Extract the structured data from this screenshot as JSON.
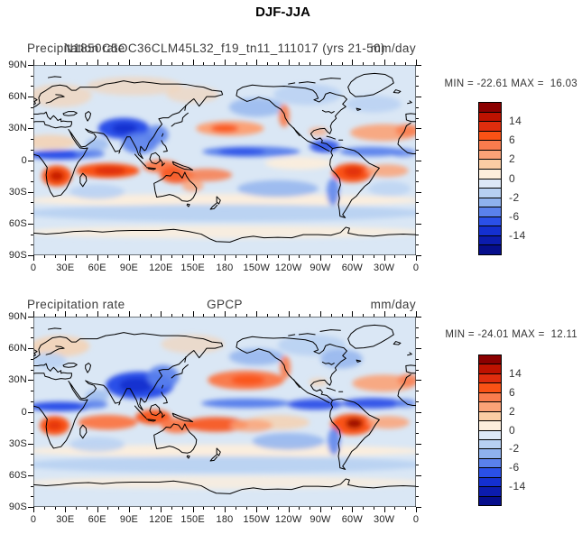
{
  "figure_title": "DJF-JJA",
  "palette": [
    "#8B0000",
    "#BE1200",
    "#DF2D0D",
    "#FA5215",
    "#F97C4D",
    "#FBA277",
    "#FBCDA4",
    "#FDEEDC",
    "#DDE8F7",
    "#B7D0F2",
    "#8FB2EE",
    "#5A81EC",
    "#2A50E8",
    "#1430D0",
    "#0C1CAE",
    "#060E8C"
  ],
  "colorbar": {
    "n_boxes": 16,
    "levels": [
      20,
      14,
      10,
      6,
      4,
      2,
      1,
      0,
      -1,
      -2,
      -4,
      -6,
      -10,
      -14,
      -20
    ],
    "labels": [
      {
        "label": "14",
        "boundary": 2
      },
      {
        "label": "6",
        "boundary": 4
      },
      {
        "label": "2",
        "boundary": 6
      },
      {
        "label": "0",
        "boundary": 8
      },
      {
        "label": "-2",
        "boundary": 10
      },
      {
        "label": "-6",
        "boundary": 12
      },
      {
        "label": "-14",
        "boundary": 14
      }
    ]
  },
  "axes": {
    "x_tick_labels": [
      "0",
      "30E",
      "60E",
      "90E",
      "120E",
      "150E",
      "180",
      "150W",
      "120W",
      "90W",
      "60W",
      "30W",
      "0"
    ],
    "y_tick_labels": [
      "90N",
      "60N",
      "30N",
      "0",
      "30S",
      "60S",
      "90S"
    ],
    "x_major_deg": 30,
    "x_minor_deg": 10,
    "y_major_deg": 30,
    "y_minor_deg": 10,
    "lon_range": [
      0,
      360
    ],
    "lat_range": [
      90,
      -90
    ]
  },
  "chart_data": [
    {
      "type": "heatmap",
      "panel": "model",
      "title_left": "Precipitation rate",
      "title_center": "N1850C5OC36CLM45L32_f19_tn11_111017 (yrs 21-50)",
      "title_right": "mm/day",
      "units": "mm/day",
      "min": -22.61,
      "max": 16.03,
      "minmax_text": "MIN = -22.61 MAX =  16.03",
      "features": [
        [
          180,
          -38,
          190,
          6,
          7,
          0.95
        ],
        [
          180,
          -50,
          190,
          8,
          9,
          0.9
        ],
        [
          180,
          -68,
          190,
          6,
          7,
          0.85
        ],
        [
          25,
          61,
          30,
          11,
          6,
          0.55
        ],
        [
          95,
          70,
          45,
          9,
          6,
          0.5
        ],
        [
          150,
          62,
          25,
          8,
          6,
          0.5
        ],
        [
          258,
          62,
          32,
          10,
          9,
          0.8
        ],
        [
          320,
          53,
          26,
          8,
          9,
          0.8
        ],
        [
          210,
          50,
          26,
          9,
          10,
          0.75
        ],
        [
          15,
          17,
          26,
          7,
          6,
          0.7
        ],
        [
          60,
          15,
          11,
          6,
          10,
          0.7
        ],
        [
          250,
          -3,
          32,
          6,
          7,
          0.9
        ],
        [
          230,
          -27,
          38,
          8,
          10,
          0.8
        ],
        [
          60,
          -30,
          26,
          7,
          9,
          0.8
        ],
        [
          335,
          -27,
          20,
          7,
          9,
          0.7
        ],
        [
          25,
          5,
          30,
          4.5,
          12,
          1
        ],
        [
          53,
          6,
          14,
          4,
          11,
          0.9
        ],
        [
          85,
          30,
          24,
          10,
          12,
          1
        ],
        [
          86,
          30,
          12,
          5,
          13,
          1
        ],
        [
          100,
          16,
          17,
          10,
          11,
          0.9
        ],
        [
          116,
          24,
          11,
          9,
          11,
          0.85
        ],
        [
          70,
          -10,
          30,
          7,
          3,
          1
        ],
        [
          72,
          -10,
          15,
          4,
          2,
          1
        ],
        [
          22,
          -15,
          14,
          10,
          3,
          1
        ],
        [
          22,
          -15,
          7,
          5,
          1,
          0.85
        ],
        [
          120,
          -6,
          17,
          6,
          4,
          1
        ],
        [
          135,
          -14,
          16,
          8,
          3,
          0.9
        ],
        [
          150,
          -24,
          10,
          6,
          5,
          0.8
        ],
        [
          163,
          -14,
          24,
          6,
          4,
          0.85
        ],
        [
          185,
          30,
          32,
          7,
          5,
          1
        ],
        [
          180,
          30,
          13,
          4,
          3,
          0.9
        ],
        [
          236,
          42,
          5,
          11,
          4,
          0.9
        ],
        [
          268,
          27,
          9,
          4,
          5,
          0.7
        ],
        [
          205,
          8,
          46,
          5,
          11,
          1
        ],
        [
          196,
          8,
          22,
          3.5,
          12,
          0.9
        ],
        [
          274,
          13,
          14,
          6,
          12,
          0.9
        ],
        [
          318,
          8,
          30,
          4.5,
          11,
          0.95
        ],
        [
          348,
          7,
          12,
          4,
          11,
          0.8
        ],
        [
          300,
          -12,
          19,
          9,
          3,
          1
        ],
        [
          301,
          -11,
          9,
          5,
          2,
          0.9
        ],
        [
          333,
          -10,
          20,
          6,
          5,
          0.85
        ],
        [
          282,
          -30,
          6,
          13,
          11,
          0.85
        ],
        [
          330,
          26,
          32,
          8,
          5,
          0.9
        ],
        [
          352,
          28,
          11,
          6,
          4,
          0.85
        ]
      ]
    },
    {
      "type": "heatmap",
      "panel": "observations",
      "title_left": "Precipitation rate",
      "title_center": "GPCP",
      "title_right": "mm/day",
      "units": "mm/day",
      "min": -24.01,
      "max": 12.11,
      "minmax_text": "MIN = -24.01 MAX =  12.11",
      "features": [
        [
          180,
          -37,
          190,
          6,
          7,
          0.95
        ],
        [
          180,
          -50,
          190,
          8,
          9,
          0.9
        ],
        [
          180,
          -67,
          190,
          6,
          7,
          0.8
        ],
        [
          25,
          62,
          28,
          10,
          6,
          0.7
        ],
        [
          150,
          64,
          30,
          9,
          6,
          0.5
        ],
        [
          262,
          63,
          32,
          10,
          9,
          0.85
        ],
        [
          290,
          50,
          20,
          9,
          10,
          0.8
        ],
        [
          15,
          48,
          16,
          8,
          9,
          0.8
        ],
        [
          210,
          52,
          26,
          8,
          10,
          0.8
        ],
        [
          60,
          15,
          11,
          6,
          10,
          0.7
        ],
        [
          230,
          -10,
          30,
          7,
          6,
          0.7
        ],
        [
          240,
          -28,
          34,
          8,
          10,
          0.8
        ],
        [
          60,
          -31,
          26,
          7,
          9,
          0.8
        ],
        [
          100,
          25,
          32,
          13,
          12,
          1
        ],
        [
          97,
          25,
          16,
          7,
          13,
          1
        ],
        [
          122,
          33,
          15,
          11,
          11,
          0.9
        ],
        [
          25,
          5,
          30,
          4.5,
          12,
          1
        ],
        [
          57,
          7,
          13,
          4,
          11,
          0.9
        ],
        [
          20,
          -13,
          14,
          9,
          3,
          1
        ],
        [
          20,
          -13,
          7,
          4,
          2,
          0.8
        ],
        [
          70,
          -10,
          28,
          7,
          4,
          1
        ],
        [
          113,
          -5,
          17,
          7,
          3,
          0.95
        ],
        [
          135,
          -13,
          15,
          7,
          4,
          1
        ],
        [
          172,
          -12,
          30,
          7,
          3,
          0.9
        ],
        [
          205,
          -13,
          20,
          6,
          5,
          0.8
        ],
        [
          200,
          30,
          36,
          9,
          4,
          1
        ],
        [
          202,
          30,
          16,
          5,
          3,
          0.9
        ],
        [
          237,
          42,
          5,
          11,
          4,
          0.9
        ],
        [
          200,
          8,
          42,
          4.5,
          11,
          1
        ],
        [
          265,
          7,
          26,
          5,
          12,
          0.95
        ],
        [
          320,
          8,
          30,
          5,
          12,
          0.95
        ],
        [
          350,
          8,
          10,
          4,
          11,
          0.8
        ],
        [
          330,
          27,
          30,
          8,
          5,
          0.9
        ],
        [
          353,
          30,
          10,
          6,
          4,
          0.8
        ],
        [
          300,
          -12,
          20,
          10,
          3,
          1
        ],
        [
          302,
          -11,
          8,
          5,
          0,
          0.8
        ],
        [
          334,
          -10,
          20,
          6,
          5,
          0.85
        ],
        [
          283,
          -28,
          6,
          13,
          11,
          0.85
        ],
        [
          268,
          28,
          9,
          4,
          6,
          0.6
        ]
      ]
    }
  ]
}
